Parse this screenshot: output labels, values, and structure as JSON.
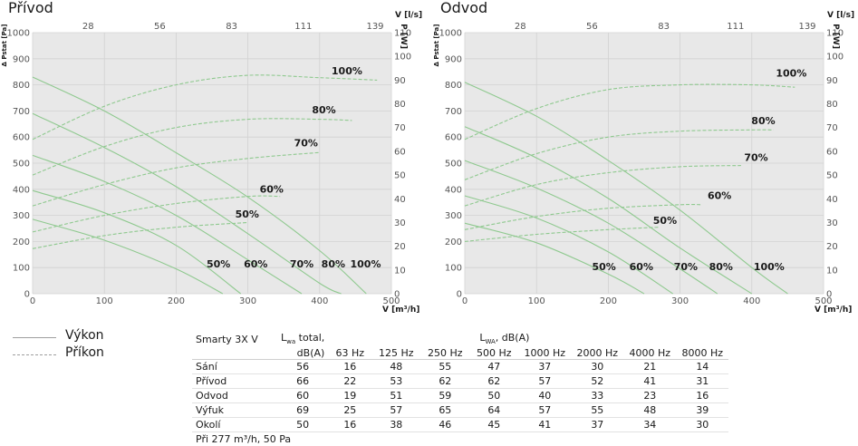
{
  "legend": {
    "solid_label": "Výkon",
    "dashed_label": "Příkon"
  },
  "chart_data": [
    {
      "type": "line",
      "title": "Přívod",
      "xlabel": "V [m³/h]",
      "ylabel_left": "Δ Pstat [Pa]",
      "ylabel_right": "P [W]",
      "top_axis_label": "V [l/s]",
      "xlim": [
        0,
        500
      ],
      "ylim": [
        0,
        1000
      ],
      "y2lim": [
        0,
        110
      ],
      "x_ticks": [
        0,
        100,
        200,
        300,
        400,
        500
      ],
      "y_ticks": [
        0,
        100,
        200,
        300,
        400,
        500,
        600,
        700,
        800,
        900,
        1000
      ],
      "y2_ticks": [
        0,
        10,
        20,
        30,
        40,
        50,
        60,
        70,
        80,
        90,
        100,
        110
      ],
      "top_ticks": [
        {
          "label": "28",
          "at": 100
        },
        {
          "label": "56",
          "at": 200
        },
        {
          "label": "83",
          "at": 300
        },
        {
          "label": "111",
          "at": 400
        },
        {
          "label": "139",
          "at": 500
        }
      ],
      "pressure_curves": [
        {
          "name": "100%",
          "x": [
            0,
            100,
            200,
            300,
            400,
            465
          ],
          "y": [
            830,
            700,
            540,
            370,
            165,
            0
          ]
        },
        {
          "name": "80%",
          "x": [
            0,
            100,
            200,
            300,
            400,
            430
          ],
          "y": [
            690,
            560,
            410,
            230,
            40,
            0
          ]
        },
        {
          "name": "70%",
          "x": [
            0,
            100,
            200,
            300,
            375
          ],
          "y": [
            530,
            430,
            300,
            130,
            0
          ]
        },
        {
          "name": "60%",
          "x": [
            0,
            100,
            200,
            290
          ],
          "y": [
            395,
            310,
            185,
            0
          ]
        },
        {
          "name": "50%",
          "x": [
            0,
            100,
            200,
            265
          ],
          "y": [
            285,
            205,
            95,
            0
          ]
        }
      ],
      "power_curves": [
        {
          "name": "100%",
          "x": [
            0,
            100,
            200,
            300,
            400,
            480
          ],
          "y": [
            65,
            79,
            88,
            92,
            91,
            90
          ]
        },
        {
          "name": "80%",
          "x": [
            0,
            100,
            200,
            300,
            400,
            445
          ],
          "y": [
            50,
            62,
            70,
            73.5,
            73.5,
            73
          ]
        },
        {
          "name": "70%",
          "x": [
            0,
            100,
            200,
            300,
            400
          ],
          "y": [
            37,
            46,
            53,
            57,
            59.5
          ]
        },
        {
          "name": "60%",
          "x": [
            0,
            100,
            200,
            300,
            345
          ],
          "y": [
            26,
            33,
            38,
            41,
            41
          ]
        },
        {
          "name": "50%",
          "x": [
            0,
            100,
            200,
            300
          ],
          "y": [
            19,
            24.5,
            28,
            30
          ]
        }
      ],
      "power_labels": [
        {
          "text": "100%",
          "x": 438,
          "y": 92.5
        },
        {
          "text": "80%",
          "x": 406,
          "y": 76
        },
        {
          "text": "70%",
          "x": 381,
          "y": 62
        },
        {
          "text": "60%",
          "x": 333,
          "y": 42.5
        },
        {
          "text": "50%",
          "x": 299,
          "y": 32
        }
      ],
      "pressure_labels": [
        {
          "text": "50%",
          "x": 259,
          "y": 100
        },
        {
          "text": "60%",
          "x": 311,
          "y": 100
        },
        {
          "text": "70%",
          "x": 375,
          "y": 100
        },
        {
          "text": "80%",
          "x": 419,
          "y": 100
        },
        {
          "text": "100%",
          "x": 464,
          "y": 100
        }
      ]
    },
    {
      "type": "line",
      "title": "Odvod",
      "xlabel": "V [m³/h]",
      "ylabel_left": "Δ Pstat [Pa]",
      "ylabel_right": "P [W]",
      "top_axis_label": "V [l/s]",
      "xlim": [
        0,
        500
      ],
      "ylim": [
        0,
        1000
      ],
      "y2lim": [
        0,
        110
      ],
      "x_ticks": [
        0,
        100,
        200,
        300,
        400,
        500
      ],
      "y_ticks": [
        0,
        100,
        200,
        300,
        400,
        500,
        600,
        700,
        800,
        900,
        1000
      ],
      "y2_ticks": [
        0,
        10,
        20,
        30,
        40,
        50,
        60,
        70,
        80,
        90,
        100,
        110
      ],
      "top_ticks": [
        {
          "label": "28",
          "at": 100
        },
        {
          "label": "56",
          "at": 200
        },
        {
          "label": "83",
          "at": 300
        },
        {
          "label": "111",
          "at": 400
        },
        {
          "label": "139",
          "at": 500
        }
      ],
      "pressure_curves": [
        {
          "name": "100%",
          "x": [
            0,
            100,
            200,
            300,
            400,
            450
          ],
          "y": [
            810,
            680,
            510,
            320,
            100,
            0
          ]
        },
        {
          "name": "80%",
          "x": [
            0,
            100,
            200,
            300,
            400
          ],
          "y": [
            640,
            520,
            365,
            175,
            0
          ]
        },
        {
          "name": "70%",
          "x": [
            0,
            100,
            200,
            300,
            352
          ],
          "y": [
            510,
            405,
            270,
            95,
            0
          ]
        },
        {
          "name": "60%",
          "x": [
            0,
            100,
            200,
            290
          ],
          "y": [
            375,
            290,
            160,
            0
          ]
        },
        {
          "name": "50%",
          "x": [
            0,
            100,
            200,
            250
          ],
          "y": [
            270,
            195,
            75,
            0
          ]
        }
      ],
      "power_curves": [
        {
          "name": "100%",
          "x": [
            0,
            100,
            200,
            300,
            400,
            460
          ],
          "y": [
            65,
            78,
            86,
            88,
            88,
            87
          ]
        },
        {
          "name": "80%",
          "x": [
            0,
            100,
            200,
            300,
            400,
            430
          ],
          "y": [
            48,
            59,
            66,
            68.5,
            69,
            69
          ]
        },
        {
          "name": "70%",
          "x": [
            0,
            100,
            200,
            300,
            385
          ],
          "y": [
            37,
            46,
            51,
            53.5,
            54
          ]
        },
        {
          "name": "60%",
          "x": [
            0,
            100,
            200,
            300,
            330
          ],
          "y": [
            27,
            32.5,
            36,
            37.5,
            37.5
          ]
        },
        {
          "name": "50%",
          "x": [
            0,
            100,
            200,
            270
          ],
          "y": [
            22,
            25,
            27,
            28
          ]
        }
      ],
      "power_labels": [
        {
          "text": "100%",
          "x": 455,
          "y": 91.5
        },
        {
          "text": "80%",
          "x": 416,
          "y": 71.5
        },
        {
          "text": "70%",
          "x": 406,
          "y": 56
        },
        {
          "text": "60%",
          "x": 355,
          "y": 40
        },
        {
          "text": "50%",
          "x": 279,
          "y": 29.5
        }
      ],
      "pressure_labels": [
        {
          "text": "50%",
          "x": 194,
          "y": 90
        },
        {
          "text": "60%",
          "x": 246,
          "y": 90
        },
        {
          "text": "70%",
          "x": 308,
          "y": 90
        },
        {
          "text": "80%",
          "x": 357,
          "y": 90
        },
        {
          "text": "100%",
          "x": 424,
          "y": 90
        }
      ]
    },
    {
      "type": "table",
      "columns": [
        "63 Hz",
        "125 Hz",
        "250 Hz",
        "500 Hz",
        "1000 Hz",
        "2000 Hz",
        "4000 Hz",
        "8000 Hz"
      ],
      "rows": [
        {
          "label": "Sání",
          "total": 56,
          "values": [
            16,
            48,
            55,
            47,
            37,
            30,
            21,
            14
          ]
        },
        {
          "label": "Přívod",
          "total": 66,
          "values": [
            22,
            53,
            62,
            62,
            57,
            52,
            41,
            31
          ]
        },
        {
          "label": "Odvod",
          "total": 60,
          "values": [
            19,
            51,
            59,
            50,
            40,
            33,
            23,
            16
          ]
        },
        {
          "label": "Výfuk",
          "total": 69,
          "values": [
            25,
            57,
            65,
            64,
            57,
            55,
            48,
            39
          ]
        },
        {
          "label": "Okolí",
          "total": 50,
          "values": [
            16,
            38,
            46,
            45,
            41,
            37,
            34,
            30
          ]
        }
      ]
    }
  ],
  "table": {
    "model": "Smarty 3X V",
    "total_header_1": "L",
    "total_header_sub": "wa",
    "total_header_2": " total,",
    "total_header_3": "dB(A)",
    "band_header_1": "L",
    "band_header_sub": "WA",
    "band_header_2": ", dB(A)",
    "footnote": "Při 277 m³/h, 50 Pa"
  },
  "colors": {
    "plot_bg": "#e8e8e8",
    "grid": "#d2d2d2",
    "curve": "#8fc98f",
    "axis_text": "#555555"
  }
}
